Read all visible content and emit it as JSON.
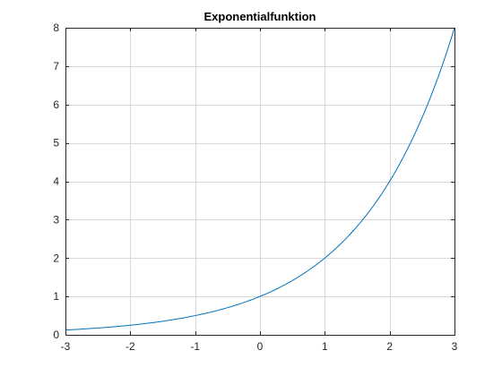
{
  "chart_data": {
    "type": "line",
    "title": "Exponentialfunktion",
    "xlabel": "",
    "ylabel": "",
    "xlim": [
      -3,
      3
    ],
    "ylim": [
      0,
      8
    ],
    "xticks": [
      -3,
      -2,
      -1,
      0,
      1,
      2,
      3
    ],
    "yticks": [
      0,
      1,
      2,
      3,
      4,
      5,
      6,
      7,
      8
    ],
    "xtick_labels": [
      "-3",
      "-2",
      "-1",
      "0",
      "1",
      "2",
      "3"
    ],
    "ytick_labels": [
      "0",
      "1",
      "2",
      "3",
      "4",
      "5",
      "6",
      "7",
      "8"
    ],
    "grid": true,
    "legend": "none",
    "series": [
      {
        "color": "#0072BD",
        "x": [
          -3,
          -2.75,
          -2.5,
          -2.25,
          -2,
          -1.75,
          -1.5,
          -1.25,
          -1,
          -0.75,
          -0.5,
          -0.25,
          0,
          0.25,
          0.5,
          0.75,
          1,
          1.25,
          1.5,
          1.75,
          2,
          2.25,
          2.5,
          2.75,
          3
        ],
        "y": [
          0.125,
          0.149,
          0.177,
          0.21,
          0.25,
          0.297,
          0.354,
          0.42,
          0.5,
          0.595,
          0.707,
          0.841,
          1,
          1.189,
          1.414,
          1.682,
          2,
          2.378,
          2.828,
          3.364,
          4,
          4.757,
          5.657,
          6.727,
          8
        ]
      }
    ]
  }
}
